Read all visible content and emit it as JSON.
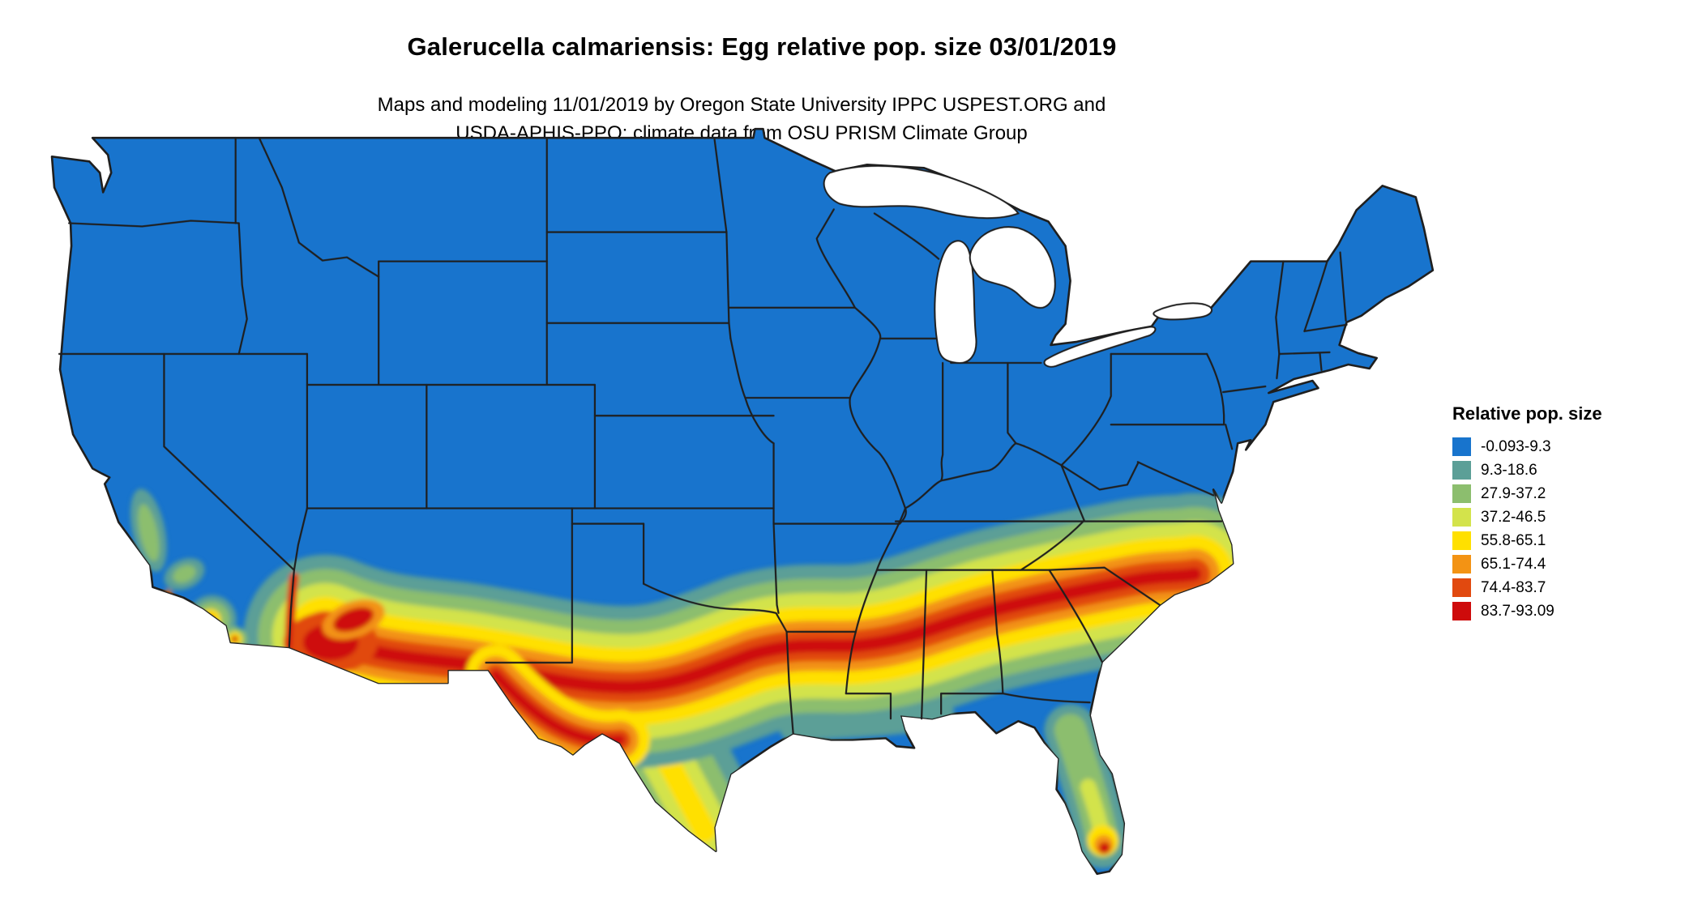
{
  "header": {
    "title": "Galerucella calmariensis: Egg relative pop. size 03/01/2019",
    "subtitle_line1": "Maps and modeling 11/01/2019 by Oregon State University IPPC USPEST.ORG and",
    "subtitle_line2": "USDA-APHIS-PPQ; climate data from OSU PRISM Climate Group"
  },
  "legend": {
    "title": "Relative pop. size",
    "items": [
      {
        "label": "-0.093-9.3",
        "color": "#1874CD"
      },
      {
        "label": "9.3-18.6",
        "color": "#5C9F97"
      },
      {
        "label": "27.9-37.2",
        "color": "#8CBE6E"
      },
      {
        "label": "37.2-46.5",
        "color": "#D3E34B"
      },
      {
        "label": "55.8-65.1",
        "color": "#FFE000"
      },
      {
        "label": "65.1-74.4",
        "color": "#F39314"
      },
      {
        "label": "74.4-83.7",
        "color": "#E1490F"
      },
      {
        "label": "83.7-93.09",
        "color": "#CE0B0B"
      }
    ]
  },
  "map": {
    "background": "#FFFFFF",
    "border_color": "#1f1f1f",
    "palette": {
      "blue": "#1874CD",
      "teal": "#5C9F97",
      "green": "#8CBE6E",
      "yellow_green": "#D3E34B",
      "yellow": "#FFE000",
      "orange": "#F39314",
      "red_orange": "#E1490F",
      "red": "#CE0B0B"
    }
  }
}
